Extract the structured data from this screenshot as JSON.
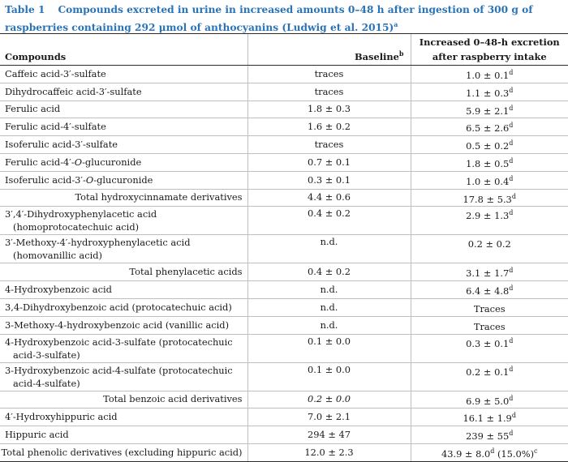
{
  "caption": {
    "label": "Table 1",
    "text": "Compounds excreted in urine in increased amounts 0–48 h after ingestion of 300 g of raspberries containing 292 μmol of anthocyanins (Ludwig et al. 2015)",
    "sup": "a"
  },
  "header": {
    "compounds": "Compounds",
    "baseline": "Baseline",
    "baseline_sup": "b",
    "increase": "Increased 0–48-h excretion after raspberry intake"
  },
  "rows": [
    {
      "name": "Caffeic acid-3′-sulfate",
      "baseline": "traces",
      "value": "1.0 ± 0.1",
      "sup": "d"
    },
    {
      "name": "Dihydrocaffeic acid-3′-sulfate",
      "baseline": "traces",
      "value": "1.1 ± 0.3",
      "sup": "d"
    },
    {
      "name": "Ferulic acid",
      "baseline": "1.8 ± 0.3",
      "value": "5.9 ± 2.1",
      "sup": "d"
    },
    {
      "name": "Ferulic acid-4′-sulfate",
      "baseline": "1.6 ± 0.2",
      "value": "6.5 ± 2.6",
      "sup": "d"
    },
    {
      "name": "Isoferulic acid-3′-sulfate",
      "baseline": "traces",
      "value": "0.5 ± 0.2",
      "sup": "d"
    },
    {
      "name_pre": "Ferulic acid-4′-",
      "name_it": "O",
      "name_post": "-glucuronide",
      "baseline": "0.7 ± 0.1",
      "value": "1.8 ± 0.5",
      "sup": "d"
    },
    {
      "name_pre": "Isoferulic acid-3′-",
      "name_it": "O",
      "name_post": "-glucuronide",
      "baseline": "0.3 ± 0.1",
      "value": "1.0 ± 0.4",
      "sup": "d"
    },
    {
      "name": "Total hydroxycinnamate derivatives",
      "baseline": "4.4 ± 0.6",
      "value": "17.8 ± 5.3",
      "sup": "d"
    },
    {
      "name": "3′,4′-Dihydroxyphenylacetic acid (homoprotocatechuic acid)",
      "baseline": "0.4 ± 0.2",
      "value": "2.9 ± 1.3",
      "sup": "d"
    },
    {
      "name": "3′-Methoxy-4′-hydroxyphenylacetic acid (homovanillic acid)",
      "baseline": "n.d.",
      "value": "0.2 ± 0.2",
      "sup": ""
    },
    {
      "name": "Total phenylacetic acids",
      "baseline": "0.4 ± 0.2",
      "value": "3.1 ± 1.7",
      "sup": "d"
    },
    {
      "name": "4-Hydroxybenzoic acid",
      "baseline": "n.d.",
      "value": "6.4 ± 4.8",
      "sup": "d"
    },
    {
      "name": "3,4-Dihydroxybenzoic acid (protocatechuic acid)",
      "baseline": "n.d.",
      "value": "Traces",
      "sup": ""
    },
    {
      "name": "3-Methoxy-4-hydroxybenzoic acid (vanillic acid)",
      "baseline": "n.d.",
      "value": "Traces",
      "sup": ""
    },
    {
      "name": "4-Hydroxybenzoic acid-3-sulfate (protocatechuic acid-3-sulfate)",
      "baseline": "0.1 ± 0.0",
      "value": "0.3 ± 0.1",
      "sup": "d"
    },
    {
      "name": "3-Hydroxybenzoic acid-4-sulfate (protocatechuic acid-4-sulfate)",
      "baseline": "0.1 ± 0.0",
      "value": "0.2 ± 0.1",
      "sup": "d"
    },
    {
      "name": "Total benzoic acid derivatives",
      "baseline": "0.2 ± 0.0",
      "value": "6.9 ± 5.0",
      "sup": "d"
    },
    {
      "name": "4′-Hydroxyhippuric acid",
      "baseline": "7.0 ± 2.1",
      "value": "16.1 ± 1.9",
      "sup": "d"
    },
    {
      "name": "Hippuric acid",
      "baseline": "294 ± 47",
      "value": "239 ± 55",
      "sup": "d"
    },
    {
      "name": "Total phenolic derivatives (excluding hippuric acid)",
      "baseline": "12.0 ± 2.3",
      "value": "43.9 ± 8.0",
      "sup": "d",
      "extra": " (15.0%)",
      "extra_sup": "c"
    }
  ]
}
